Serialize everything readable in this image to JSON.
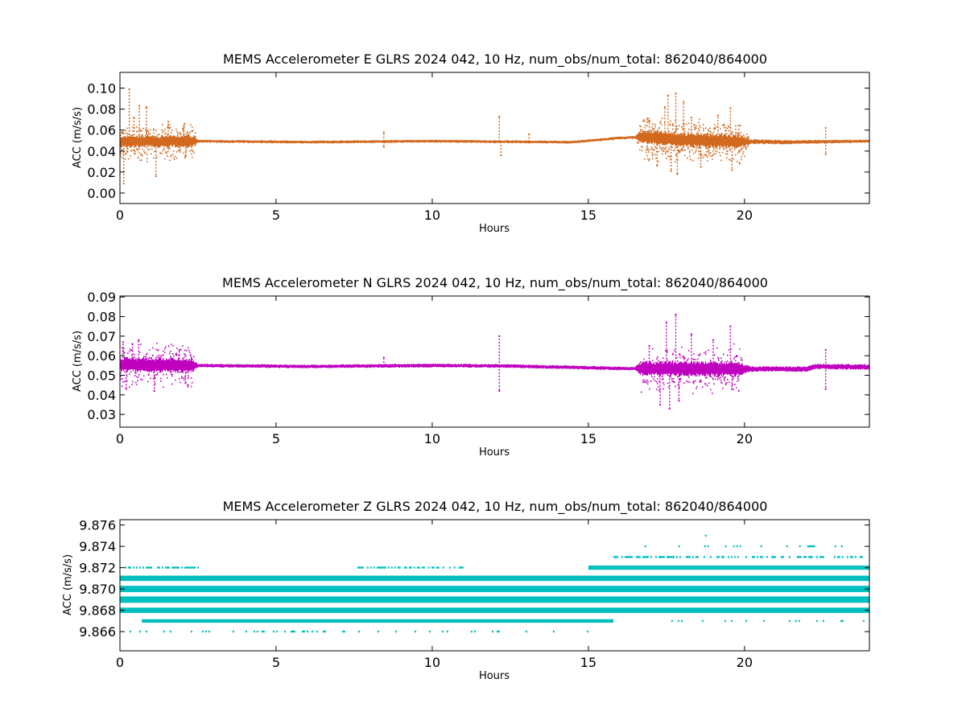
{
  "figure": {
    "background": "#ffffff"
  },
  "chart_data": [
    {
      "type": "scatter",
      "title": "MEMS Accelerometer E GLRS 2024 042, 10 Hz, num_obs/num_total: 862040/864000",
      "xlabel": "Hours",
      "ylabel": "ACC (m/s/s)",
      "xlim": [
        0,
        24
      ],
      "ylim": [
        -0.01,
        0.115
      ],
      "xticks": [
        0,
        5,
        10,
        15,
        20
      ],
      "yticks": [
        "0.00",
        "0.02",
        "0.04",
        "0.06",
        "0.08",
        "0.10"
      ],
      "grid": false,
      "color": "#d2691e",
      "series": [
        {
          "baseline": [
            [
              0,
              0.049
            ],
            [
              2.5,
              0.0495
            ],
            [
              6,
              0.0485
            ],
            [
              10,
              0.0495
            ],
            [
              12,
              0.049
            ],
            [
              14.5,
              0.0485
            ],
            [
              16,
              0.0525
            ],
            [
              16.8,
              0.0535
            ],
            [
              18,
              0.0505
            ],
            [
              20,
              0.049
            ],
            [
              21.5,
              0.0485
            ],
            [
              24,
              0.0495
            ]
          ],
          "noise": [
            [
              0,
              0.006
            ],
            [
              2.3,
              0.006
            ],
            [
              2.5,
              0.0015
            ],
            [
              16.5,
              0.0015
            ],
            [
              16.7,
              0.007
            ],
            [
              19.8,
              0.007
            ],
            [
              20.2,
              0.0025
            ],
            [
              24,
              0.0015
            ]
          ],
          "spikes": [
            [
              0.12,
              0.009
            ],
            [
              0.22,
              0.052
            ],
            [
              0.3,
              0.099
            ],
            [
              0.45,
              0.072
            ],
            [
              0.62,
              0.083
            ],
            [
              0.85,
              0.082
            ],
            [
              1.15,
              0.016
            ],
            [
              1.55,
              0.068
            ],
            [
              2.05,
              0.064
            ],
            [
              2.1,
              0.036
            ],
            [
              8.45,
              0.058
            ],
            [
              8.45,
              0.044
            ],
            [
              12.15,
              0.073
            ],
            [
              12.2,
              0.036
            ],
            [
              13.1,
              0.056
            ],
            [
              16.95,
              0.069
            ],
            [
              17.2,
              0.026
            ],
            [
              17.45,
              0.082
            ],
            [
              17.55,
              0.093
            ],
            [
              17.65,
              0.021
            ],
            [
              17.8,
              0.095
            ],
            [
              17.85,
              0.018
            ],
            [
              18.05,
              0.087
            ],
            [
              18.3,
              0.072
            ],
            [
              18.6,
              0.025
            ],
            [
              19.15,
              0.074
            ],
            [
              19.55,
              0.081
            ],
            [
              19.6,
              0.022
            ],
            [
              22.6,
              0.062
            ],
            [
              22.6,
              0.037
            ]
          ]
        }
      ]
    },
    {
      "type": "scatter",
      "title": "MEMS Accelerometer N GLRS 2024 042, 10 Hz, num_obs/num_total: 862040/864000",
      "xlabel": "Hours",
      "ylabel": "ACC (m/s/s)",
      "xlim": [
        0,
        24
      ],
      "ylim": [
        0.0235,
        0.0905
      ],
      "xticks": [
        0,
        5,
        10,
        15,
        20
      ],
      "yticks": [
        "0.03",
        "0.04",
        "0.05",
        "0.06",
        "0.07",
        "0.08",
        "0.09"
      ],
      "grid": false,
      "color": "#bf00bf",
      "series": [
        {
          "baseline": [
            [
              0,
              0.0555
            ],
            [
              2.5,
              0.055
            ],
            [
              6,
              0.0545
            ],
            [
              10,
              0.055
            ],
            [
              12.2,
              0.0548
            ],
            [
              14,
              0.0542
            ],
            [
              16,
              0.0535
            ],
            [
              18,
              0.0533
            ],
            [
              20,
              0.0532
            ],
            [
              22,
              0.0532
            ],
            [
              22.3,
              0.0545
            ],
            [
              24,
              0.0542
            ]
          ],
          "noise": [
            [
              0,
              0.004
            ],
            [
              2.3,
              0.004
            ],
            [
              2.5,
              0.001
            ],
            [
              16.5,
              0.001
            ],
            [
              16.7,
              0.004
            ],
            [
              19.8,
              0.004
            ],
            [
              20.2,
              0.0015
            ],
            [
              24,
              0.0015
            ]
          ],
          "spikes": [
            [
              0.1,
              0.067
            ],
            [
              0.2,
              0.043
            ],
            [
              0.4,
              0.066
            ],
            [
              0.6,
              0.068
            ],
            [
              1.1,
              0.042
            ],
            [
              1.9,
              0.063
            ],
            [
              2.1,
              0.046
            ],
            [
              8.45,
              0.059
            ],
            [
              12.15,
              0.07
            ],
            [
              12.15,
              0.042
            ],
            [
              16.95,
              0.065
            ],
            [
              17.3,
              0.035
            ],
            [
              17.5,
              0.077
            ],
            [
              17.6,
              0.033
            ],
            [
              17.8,
              0.081
            ],
            [
              17.9,
              0.037
            ],
            [
              18.3,
              0.071
            ],
            [
              19.0,
              0.068
            ],
            [
              19.55,
              0.075
            ],
            [
              19.6,
              0.043
            ],
            [
              22.6,
              0.063
            ],
            [
              22.6,
              0.043
            ]
          ]
        }
      ]
    },
    {
      "type": "scatter",
      "title": "MEMS Accelerometer Z GLRS 2024 042, 10 Hz, num_obs/num_total: 862040/864000",
      "xlabel": "Hours",
      "ylabel": "ACC (m/s/s)",
      "xlim": [
        0,
        24
      ],
      "ylim": [
        9.8642,
        9.8765
      ],
      "xticks": [
        0,
        5,
        10,
        15,
        20
      ],
      "yticks": [
        "9.866",
        "9.868",
        "9.870",
        "9.872",
        "9.874",
        "9.876"
      ],
      "grid": false,
      "color": "#00bfbf",
      "series": [
        {
          "levels": [
            {
              "y": 9.875,
              "start": 17.6,
              "end": 19.5,
              "density": 0.03,
              "thickness": 0.5,
              "solid": false
            },
            {
              "y": 9.874,
              "start": 0.3,
              "end": 0.4,
              "density": 0.05,
              "thickness": 0.5,
              "solid": false
            },
            {
              "y": 9.874,
              "start": 16.8,
              "end": 23.8,
              "density": 0.15,
              "thickness": 0.6,
              "solid": false
            },
            {
              "y": 9.873,
              "start": 0.1,
              "end": 0.6,
              "density": 0.2,
              "thickness": 0.6,
              "solid": false
            },
            {
              "y": 9.873,
              "start": 15.8,
              "end": 23.8,
              "density": 0.6,
              "thickness": 0.8,
              "solid": false
            },
            {
              "y": 9.872,
              "start": 0.0,
              "end": 2.5,
              "density": 0.55,
              "thickness": 0.9,
              "solid": false
            },
            {
              "y": 9.872,
              "start": 7.6,
              "end": 11.0,
              "density": 0.55,
              "thickness": 0.9,
              "solid": false
            },
            {
              "y": 9.872,
              "start": 15.0,
              "end": 24.0,
              "density": 1.0,
              "thickness": 1.2,
              "solid": true
            },
            {
              "y": 9.871,
              "start": 0.0,
              "end": 24.0,
              "density": 1.0,
              "thickness": 1.5,
              "solid": true
            },
            {
              "y": 9.87,
              "start": 0.0,
              "end": 24.0,
              "density": 1.0,
              "thickness": 1.8,
              "solid": true
            },
            {
              "y": 9.869,
              "start": 0.0,
              "end": 24.0,
              "density": 1.0,
              "thickness": 1.8,
              "solid": true
            },
            {
              "y": 9.868,
              "start": 0.0,
              "end": 24.0,
              "density": 1.0,
              "thickness": 1.5,
              "solid": true
            },
            {
              "y": 9.867,
              "start": 0.7,
              "end": 15.8,
              "density": 1.0,
              "thickness": 1.0,
              "solid": true
            },
            {
              "y": 9.867,
              "start": 17.5,
              "end": 23.8,
              "density": 0.15,
              "thickness": 0.6,
              "solid": false
            },
            {
              "y": 9.866,
              "start": 0.1,
              "end": 15.0,
              "density": 0.12,
              "thickness": 0.6,
              "solid": false
            }
          ]
        }
      ]
    }
  ]
}
